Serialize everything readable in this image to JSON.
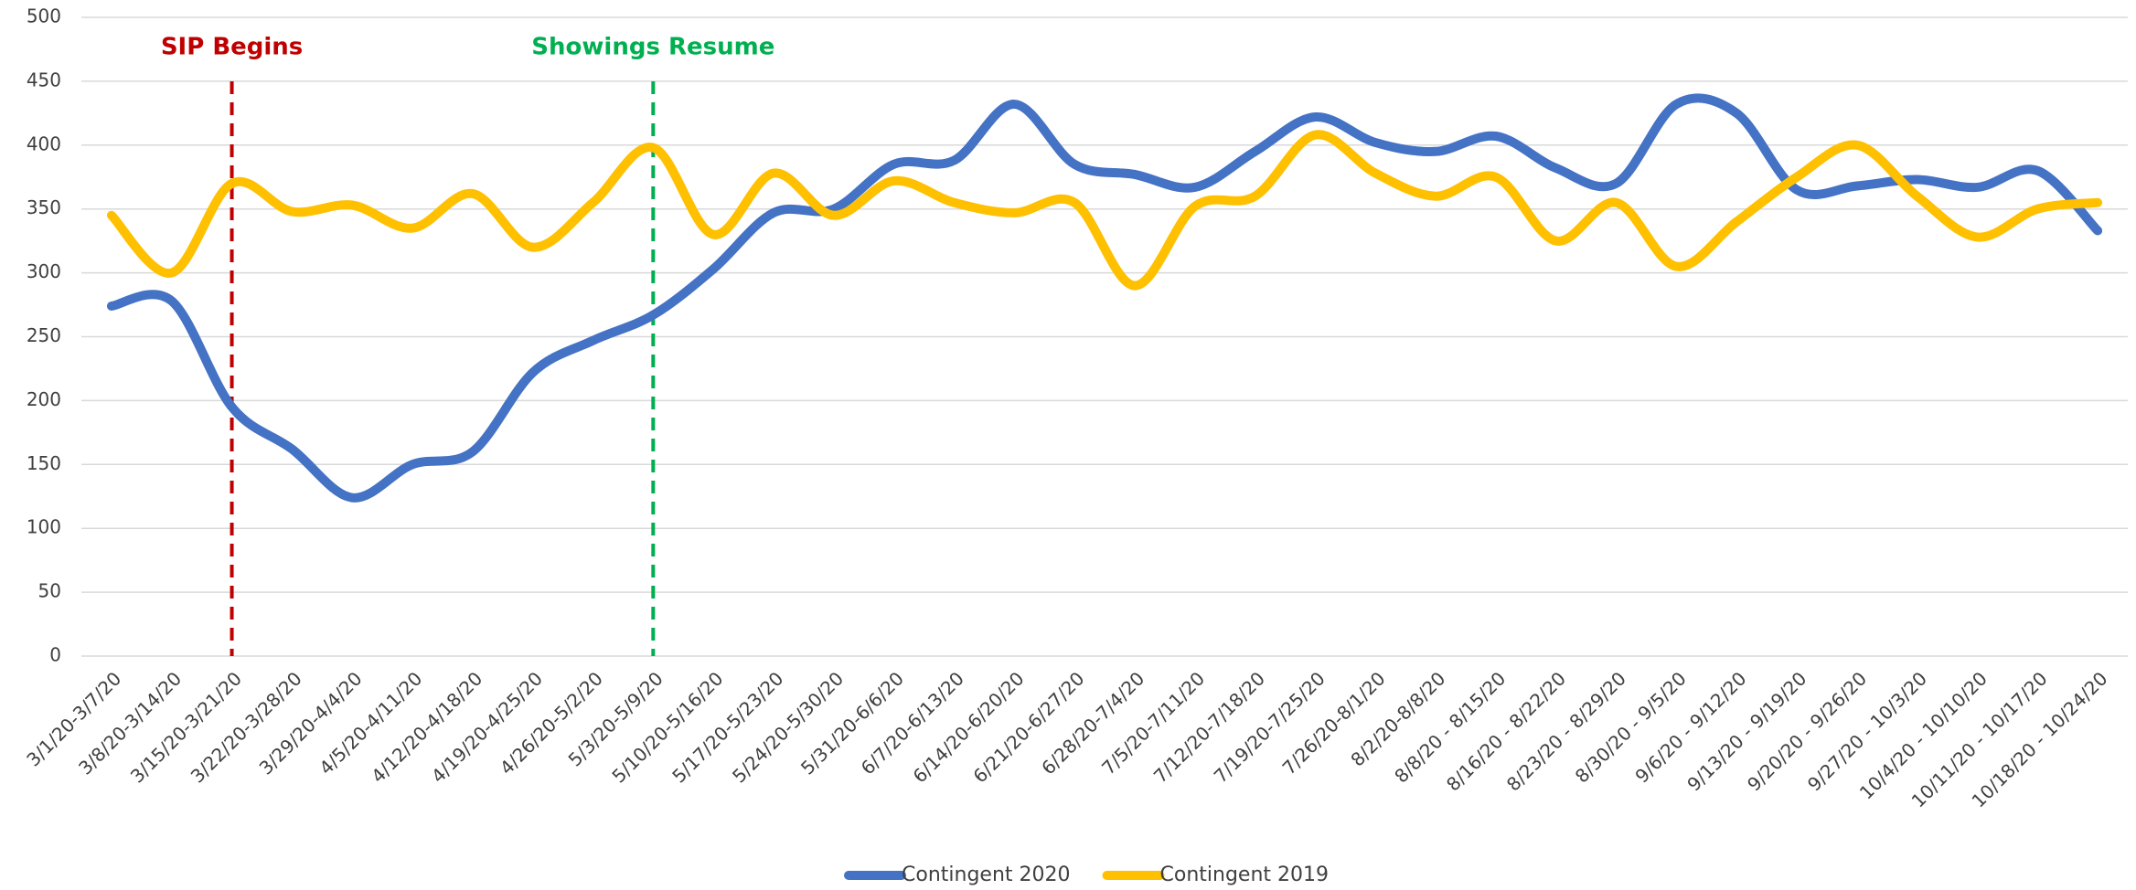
{
  "chart_data": {
    "type": "line",
    "categories": [
      "3/1/20-3/7/20",
      "3/8/20-3/14/20",
      "3/15/20-3/21/20",
      "3/22/20-3/28/20",
      "3/29/20-4/4/20",
      "4/5/20-4/11/20",
      "4/12/20-4/18/20",
      "4/19/20-4/25/20",
      "4/26/20-5/2/20",
      "5/3/20-5/9/20",
      "5/10/20-5/16/20",
      "5/17/20-5/23/20",
      "5/24/20-5/30/20",
      "5/31/20-6/6/20",
      "6/7/20-6/13/20",
      "6/14/20-6/20/20",
      "6/21/20-6/27/20",
      "6/28/20-7/4/20",
      "7/5/20-7/11/20",
      "7/12/20-7/18/20",
      "7/19/20-7/25/20",
      "7/26/20-8/1/20",
      "8/2/20-8/8/20",
      "8/8/20 - 8/15/20",
      "8/16/20 - 8/22/20",
      "8/23/20 - 8/29/20",
      "8/30/20 - 9/5/20",
      "9/6/20 - 9/12/20",
      "9/13/20 - 9/19/20",
      "9/20/20 - 9/26/20",
      "9/27/20 - 10/3/20",
      "10/4/20 - 10/10/20",
      "10/11/20 - 10/17/20",
      "10/18/20 - 10/24/20"
    ],
    "series": [
      {
        "name": "Contingent 2020",
        "color": "#4472c4",
        "values": [
          274,
          278,
          195,
          162,
          124,
          150,
          160,
          222,
          247,
          267,
          303,
          347,
          350,
          385,
          388,
          432,
          385,
          377,
          367,
          395,
          422,
          402,
          395,
          407,
          382,
          370,
          432,
          425,
          365,
          368,
          373,
          367,
          380,
          333
        ]
      },
      {
        "name": "Contingent 2019",
        "color": "#ffc000",
        "values": [
          345,
          300,
          370,
          348,
          353,
          335,
          362,
          320,
          355,
          398,
          330,
          378,
          345,
          372,
          355,
          347,
          355,
          290,
          352,
          360,
          408,
          378,
          360,
          375,
          325,
          355,
          305,
          340,
          375,
          400,
          360,
          328,
          350,
          355
        ]
      }
    ],
    "annotations": [
      {
        "text": "SIP Begins",
        "x": "3/15/20-3/21/20",
        "color": "#c00000"
      },
      {
        "text": "Showings Resume",
        "x": "5/3/20-5/9/20",
        "color": "#00b050"
      }
    ],
    "ylim": [
      0,
      500
    ],
    "yticks": [
      0,
      50,
      100,
      150,
      200,
      250,
      300,
      350,
      400,
      450,
      500
    ],
    "grid": true,
    "legend": "bottom"
  }
}
